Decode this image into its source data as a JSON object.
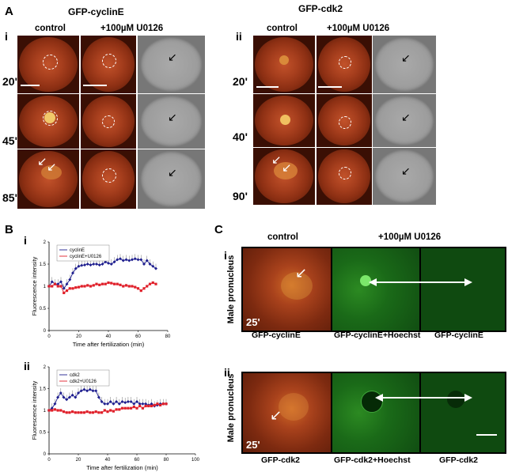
{
  "panel_a": {
    "letter": "A",
    "left": {
      "roman": "i",
      "title": "GFP-cyclinE",
      "col_control": "control",
      "col_treatment": "+100µM U0126",
      "times": [
        "20'",
        "45'",
        "85'"
      ]
    },
    "right": {
      "roman": "ii",
      "title": "GFP-cdk2",
      "col_control": "control",
      "col_treatment": "+100µM U0126",
      "times": [
        "20'",
        "40'",
        "90'"
      ]
    }
  },
  "panel_b": {
    "letter": "B",
    "chart_i_roman": "i",
    "chart_ii_roman": "ii"
  },
  "panel_c": {
    "letter": "C",
    "col_control": "control",
    "col_treatment": "+100µM U0126",
    "row_label": "Male pronucleus",
    "row_i": {
      "roman": "i",
      "time": "25'",
      "captions": [
        "GFP-cyclinE",
        "GFP-cyclinE+Hoechst",
        "GFP-cyclinE"
      ]
    },
    "row_ii": {
      "roman": "ii",
      "time": "25'",
      "captions": [
        "GFP-cdk2",
        "GFP-cdk2+Hoechst",
        "GFP-cdk2"
      ]
    }
  },
  "colors": {
    "series_blue": "#1f1f8f",
    "series_red": "#e0202a"
  },
  "chart_data": [
    {
      "type": "line",
      "xlabel": "Time after fertilization (min)",
      "ylabel": "Fluorescence intensity",
      "xlim": [
        0,
        80
      ],
      "ylim": [
        0,
        2
      ],
      "xticks": [
        0,
        20,
        40,
        60,
        80
      ],
      "yticks": [
        0,
        0.5,
        1,
        1.5,
        2
      ],
      "legend": "top-left",
      "series": [
        {
          "name": "cyclinE",
          "color": "#1f1f8f",
          "x": [
            0,
            2,
            4,
            6,
            8,
            10,
            12,
            14,
            16,
            18,
            20,
            22,
            24,
            26,
            28,
            30,
            32,
            34,
            36,
            38,
            40,
            42,
            44,
            46,
            48,
            50,
            52,
            54,
            56,
            58,
            60,
            62,
            64,
            66,
            68,
            70,
            72
          ],
          "y": [
            1.0,
            1.1,
            1.05,
            1.05,
            1.1,
            0.95,
            1.05,
            1.15,
            1.3,
            1.4,
            1.45,
            1.47,
            1.48,
            1.5,
            1.48,
            1.5,
            1.5,
            1.48,
            1.5,
            1.55,
            1.52,
            1.5,
            1.55,
            1.6,
            1.62,
            1.58,
            1.6,
            1.58,
            1.6,
            1.62,
            1.6,
            1.6,
            1.5,
            1.58,
            1.5,
            1.45,
            1.4
          ]
        },
        {
          "name": "cyclinE+U0126",
          "color": "#e0202a",
          "x": [
            0,
            2,
            4,
            6,
            8,
            10,
            12,
            14,
            16,
            18,
            20,
            22,
            24,
            26,
            28,
            30,
            32,
            34,
            36,
            38,
            40,
            42,
            44,
            46,
            48,
            50,
            52,
            54,
            56,
            58,
            60,
            62,
            64,
            66,
            68,
            70,
            72
          ],
          "y": [
            1.0,
            1.0,
            1.05,
            1.0,
            1.0,
            0.85,
            0.9,
            0.95,
            0.95,
            0.97,
            0.98,
            1.0,
            1.0,
            1.02,
            1.0,
            1.02,
            1.05,
            1.03,
            1.05,
            1.05,
            1.08,
            1.07,
            1.05,
            1.05,
            1.03,
            1.0,
            1.02,
            1.0,
            1.0,
            0.98,
            0.95,
            0.9,
            0.95,
            1.0,
            1.05,
            1.08,
            1.05
          ]
        }
      ]
    },
    {
      "type": "line",
      "xlabel": "Time after fertilization (min)",
      "ylabel": "Fluorescence intensity",
      "xlim": [
        0,
        100
      ],
      "ylim": [
        0,
        2
      ],
      "xticks": [
        0,
        20,
        40,
        60,
        80,
        100
      ],
      "yticks": [
        0,
        0.5,
        1,
        1.5,
        2
      ],
      "legend": "top-left",
      "series": [
        {
          "name": "cdk2",
          "color": "#1f1f8f",
          "x": [
            0,
            2,
            4,
            6,
            8,
            10,
            12,
            14,
            16,
            18,
            20,
            22,
            24,
            26,
            28,
            30,
            32,
            34,
            36,
            38,
            40,
            42,
            44,
            46,
            48,
            50,
            52,
            54,
            56,
            58,
            60,
            62,
            64,
            66,
            68,
            70,
            72,
            74,
            76,
            78,
            80
          ],
          "y": [
            1.0,
            1.05,
            1.15,
            1.3,
            1.4,
            1.3,
            1.25,
            1.3,
            1.35,
            1.3,
            1.4,
            1.45,
            1.48,
            1.45,
            1.48,
            1.45,
            1.45,
            1.3,
            1.2,
            1.15,
            1.15,
            1.2,
            1.15,
            1.2,
            1.15,
            1.2,
            1.18,
            1.2,
            1.2,
            1.15,
            1.2,
            1.15,
            1.15,
            1.15,
            1.12,
            1.15,
            1.1,
            1.12,
            1.15,
            1.15,
            1.15
          ]
        },
        {
          "name": "cdk2+U0126",
          "color": "#e0202a",
          "x": [
            0,
            2,
            4,
            6,
            8,
            10,
            12,
            14,
            16,
            18,
            20,
            22,
            24,
            26,
            28,
            30,
            32,
            34,
            36,
            38,
            40,
            42,
            44,
            46,
            48,
            50,
            52,
            54,
            56,
            58,
            60,
            62,
            64,
            66,
            68,
            70,
            72,
            74,
            76,
            78,
            80
          ],
          "y": [
            1.0,
            1.0,
            1.02,
            1.0,
            1.0,
            0.97,
            0.95,
            0.95,
            0.97,
            0.95,
            0.95,
            0.95,
            0.95,
            0.97,
            0.95,
            0.95,
            0.97,
            0.95,
            0.95,
            1.0,
            0.97,
            1.0,
            0.98,
            1.02,
            1.02,
            1.05,
            1.05,
            1.05,
            1.05,
            1.08,
            1.05,
            1.1,
            1.05,
            1.1,
            1.1,
            1.1,
            1.12,
            1.15,
            1.12,
            1.15,
            1.15
          ]
        }
      ]
    }
  ]
}
